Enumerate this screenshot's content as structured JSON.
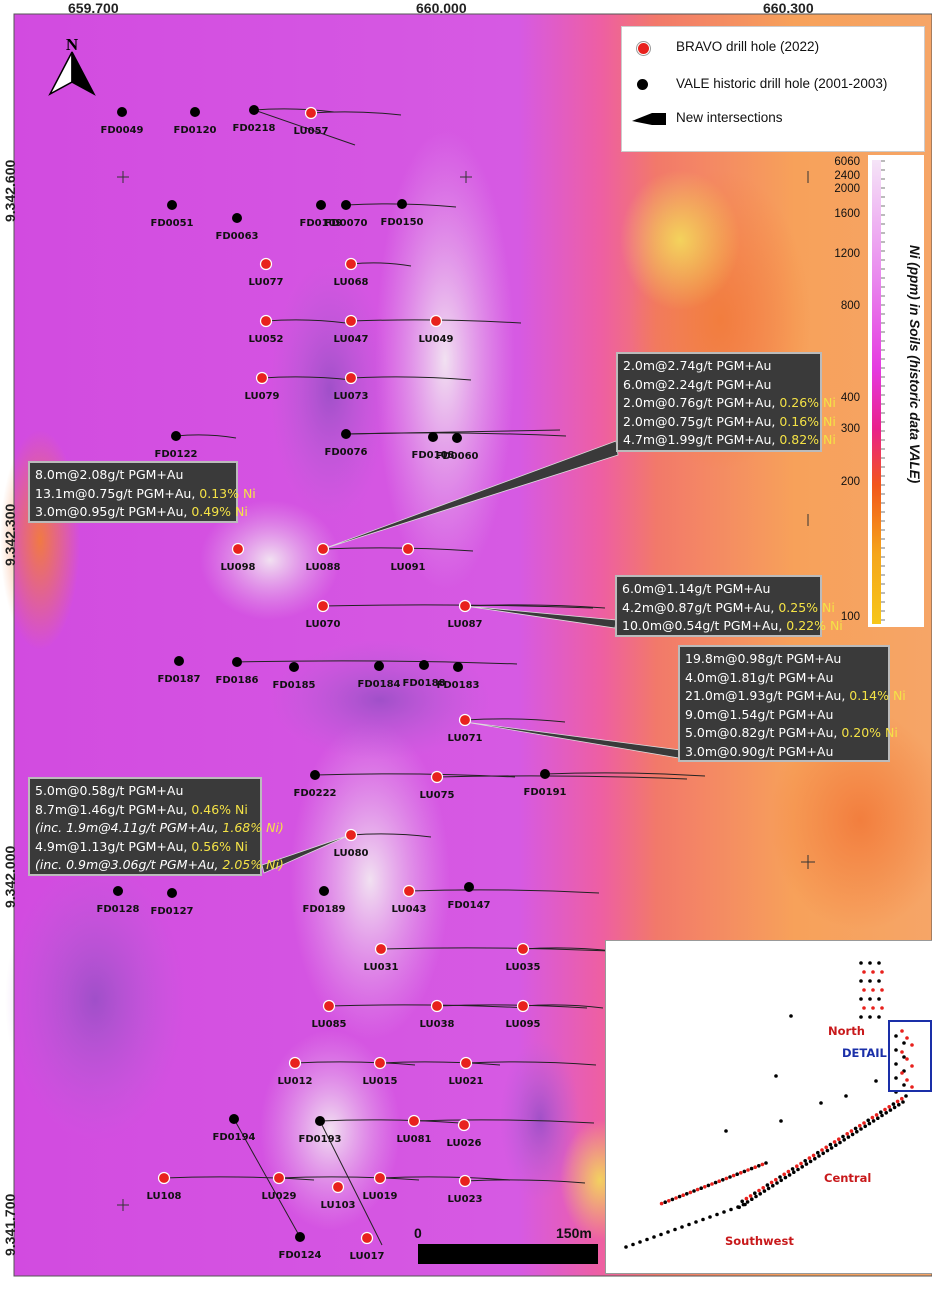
{
  "coords": {
    "x_top": [
      "659.700",
      "660.000",
      "660.300"
    ],
    "y_left": [
      "9.342.600",
      "9.342.300",
      "9.342.000",
      "9.341.700"
    ]
  },
  "north_label": "N",
  "legend": {
    "bravo": "BRAVO drill hole (2022)",
    "vale": "VALE historic drill hole (2001-2003)",
    "intersections": "New intersections",
    "bravo_color": "#e8211d",
    "vale_color": "#000000"
  },
  "color_scale": {
    "title": "Ni (ppm) in Soils (historic data VALE)",
    "ticks": [
      "6060",
      "2400",
      "2000",
      "1600",
      "1200",
      "800",
      "400",
      "300",
      "200",
      "100"
    ]
  },
  "scale_bar": {
    "start": "0",
    "end": "150m"
  },
  "holes": [
    {
      "name": "FD0049",
      "type": "vale"
    },
    {
      "name": "FD0120",
      "type": "vale"
    },
    {
      "name": "FD0218",
      "type": "vale"
    },
    {
      "name": "LU057",
      "type": "bravo"
    },
    {
      "name": "FD0051",
      "type": "vale"
    },
    {
      "name": "FD0063",
      "type": "vale"
    },
    {
      "name": "FD0109",
      "type": "vale"
    },
    {
      "name": "FD0070",
      "type": "vale"
    },
    {
      "name": "FD0150",
      "type": "vale"
    },
    {
      "name": "LU077",
      "type": "bravo"
    },
    {
      "name": "LU068",
      "type": "bravo"
    },
    {
      "name": "LU052",
      "type": "bravo"
    },
    {
      "name": "LU047",
      "type": "bravo"
    },
    {
      "name": "LU049",
      "type": "bravo"
    },
    {
      "name": "LU079",
      "type": "bravo"
    },
    {
      "name": "LU073",
      "type": "bravo"
    },
    {
      "name": "FD0122",
      "type": "vale"
    },
    {
      "name": "FD0076",
      "type": "vale"
    },
    {
      "name": "FD0108",
      "type": "vale"
    },
    {
      "name": "FD0060",
      "type": "vale"
    },
    {
      "name": "LU098",
      "type": "bravo"
    },
    {
      "name": "LU088",
      "type": "bravo"
    },
    {
      "name": "LU091",
      "type": "bravo"
    },
    {
      "name": "LU070",
      "type": "bravo"
    },
    {
      "name": "LU087",
      "type": "bravo"
    },
    {
      "name": "FD0187",
      "type": "vale"
    },
    {
      "name": "FD0186",
      "type": "vale"
    },
    {
      "name": "FD0185",
      "type": "vale"
    },
    {
      "name": "FD0184",
      "type": "vale"
    },
    {
      "name": "FD0188",
      "type": "vale"
    },
    {
      "name": "FD0183",
      "type": "vale"
    },
    {
      "name": "LU071",
      "type": "bravo"
    },
    {
      "name": "FD0222",
      "type": "vale"
    },
    {
      "name": "LU075",
      "type": "bravo"
    },
    {
      "name": "FD0191",
      "type": "vale"
    },
    {
      "name": "LU080",
      "type": "bravo"
    },
    {
      "name": "FD0128",
      "type": "vale"
    },
    {
      "name": "FD0127",
      "type": "vale"
    },
    {
      "name": "FD0189",
      "type": "vale"
    },
    {
      "name": "LU043",
      "type": "bravo"
    },
    {
      "name": "FD0147",
      "type": "vale"
    },
    {
      "name": "LU031",
      "type": "bravo"
    },
    {
      "name": "LU035",
      "type": "bravo"
    },
    {
      "name": "LU085",
      "type": "bravo"
    },
    {
      "name": "LU038",
      "type": "bravo"
    },
    {
      "name": "LU095",
      "type": "bravo"
    },
    {
      "name": "LU012",
      "type": "bravo"
    },
    {
      "name": "LU015",
      "type": "bravo"
    },
    {
      "name": "LU021",
      "type": "bravo"
    },
    {
      "name": "FD0194",
      "type": "vale"
    },
    {
      "name": "FD0193",
      "type": "vale"
    },
    {
      "name": "LU081",
      "type": "bravo"
    },
    {
      "name": "LU026",
      "type": "bravo"
    },
    {
      "name": "LU108",
      "type": "bravo"
    },
    {
      "name": "LU029",
      "type": "bravo"
    },
    {
      "name": "LU103",
      "type": "bravo"
    },
    {
      "name": "LU019",
      "type": "bravo"
    },
    {
      "name": "LU023",
      "type": "bravo"
    },
    {
      "name": "FD0124",
      "type": "vale"
    },
    {
      "name": "LU017",
      "type": "bravo"
    }
  ],
  "callouts": {
    "c1": [
      {
        "text": "2.0m@2.74g/t PGM+Au",
        "ni": ""
      },
      {
        "text": "6.0m@2.24g/t PGM+Au",
        "ni": ""
      },
      {
        "text": "2.0m@0.76g/t PGM+Au, ",
        "ni": "0.26% Ni"
      },
      {
        "text": "2.0m@0.75g/t PGM+Au, ",
        "ni": "0.16% Ni"
      },
      {
        "text": "4.7m@1.99g/t PGM+Au, ",
        "ni": "0.82% Ni"
      }
    ],
    "c2": [
      {
        "text": "8.0m@2.08g/t PGM+Au",
        "ni": ""
      },
      {
        "text": "13.1m@0.75g/t PGM+Au, ",
        "ni": "0.13% Ni"
      },
      {
        "text": "3.0m@0.95g/t PGM+Au, ",
        "ni": "0.49% Ni"
      }
    ],
    "c3": [
      {
        "text": "6.0m@1.14g/t PGM+Au",
        "ni": ""
      },
      {
        "text": "4.2m@0.87g/t PGM+Au, ",
        "ni": "0.25% Ni"
      },
      {
        "text": "10.0m@0.54g/t PGM+Au, ",
        "ni": "0.22% Ni"
      }
    ],
    "c4": [
      {
        "text": "19.8m@0.98g/t PGM+Au",
        "ni": ""
      },
      {
        "text": "4.0m@1.81g/t PGM+Au",
        "ni": ""
      },
      {
        "text": "21.0m@1.93g/t PGM+Au, ",
        "ni": "0.14% Ni"
      },
      {
        "text": "9.0m@1.54g/t PGM+Au",
        "ni": ""
      },
      {
        "text": "5.0m@0.82g/t PGM+Au, ",
        "ni": "0.20% Ni"
      },
      {
        "text": "3.0m@0.90g/t PGM+Au",
        "ni": ""
      }
    ],
    "c5": [
      {
        "text": "5.0m@0.58g/t PGM+Au",
        "ni": ""
      },
      {
        "text": "8.7m@1.46g/t PGM+Au, ",
        "ni": "0.46% Ni"
      },
      {
        "text": "(inc. 1.9m@4.11g/t PGM+Au, ",
        "ni": "1.68% Ni)",
        "italic": true
      },
      {
        "text": "4.9m@1.13g/t PGM+Au, ",
        "ni": "0.56% Ni"
      },
      {
        "text": "(inc. 0.9m@3.06g/t PGM+Au, ",
        "ni": "2.05% Ni)",
        "italic": true
      }
    ]
  },
  "inset": {
    "north": "North",
    "detail": "DETAIL",
    "central": "Central",
    "southwest": "Southwest"
  }
}
